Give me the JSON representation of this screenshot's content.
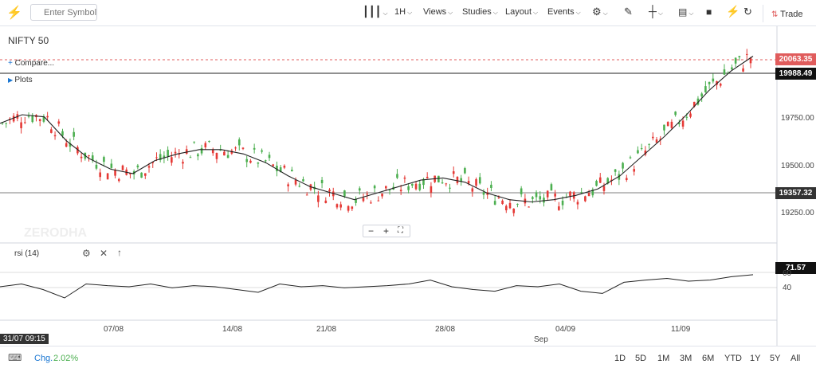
{
  "toolbar": {
    "symbol_placeholder": "Enter Symbol",
    "interval": "1H",
    "views": "Views",
    "studies": "Studies",
    "layout": "Layout",
    "events": "Events",
    "trade": "Trade"
  },
  "panel": {
    "instrument": "NIFTY 50",
    "compare": "Compare...",
    "plots": "Plots",
    "rsi_label": "rsi (14)"
  },
  "price_tags": {
    "last": "20063.35",
    "ma": "19988.49",
    "crosshair": "19357.32",
    "rsi": "71.57"
  },
  "y_axis": [
    "19750.00",
    "19500.00",
    "19250.00"
  ],
  "rsi_axis": [
    "60",
    "40"
  ],
  "x_axis": [
    "07/08",
    "14/08",
    "21/08",
    "28/08",
    "04/09",
    "11/09"
  ],
  "x_axis_month": "Sep",
  "crosshair_time": "31/07 09:15",
  "watermark": "ZERODHA",
  "bottom": {
    "change_label": "Chg.",
    "change_value": "2.02%",
    "ranges": [
      "1D",
      "5D",
      "1M",
      "3M",
      "6M",
      "YTD",
      "1Y",
      "5Y",
      "All"
    ]
  },
  "colors": {
    "up": "#4caf50",
    "down": "#e53935",
    "last_tag": "#e05c5c",
    "accent": "#1976d2"
  },
  "chart_data": {
    "type": "line",
    "title": "NIFTY 50",
    "ma_series": [
      19680,
      19720,
      19710,
      19600,
      19520,
      19470,
      19450,
      19510,
      19540,
      19560,
      19560,
      19540,
      19500,
      19440,
      19390,
      19360,
      19330,
      19360,
      19390,
      19420,
      19430,
      19410,
      19360,
      19330,
      19320,
      19330,
      19350,
      19380,
      19440,
      19530,
      19620,
      19720,
      19830,
      19920,
      19988.49
    ],
    "rsi_series": [
      50,
      55,
      45,
      30,
      55,
      52,
      50,
      55,
      48,
      52,
      50,
      45,
      40,
      55,
      50,
      52,
      48,
      50,
      52,
      55,
      62,
      50,
      45,
      42,
      52,
      50,
      55,
      42,
      38,
      58,
      62,
      65,
      60,
      62,
      68,
      71.57
    ],
    "last": 20063.35,
    "y_range": [
      19150,
      20100
    ]
  }
}
